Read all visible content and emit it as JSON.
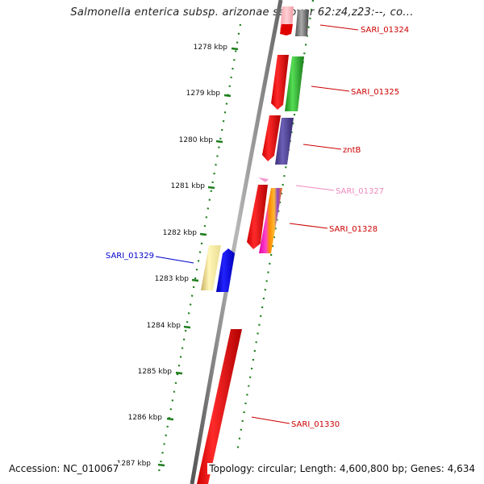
{
  "title": "Salmonella enterica subsp. arizonae serovar 62:z4,z23:--, co...",
  "footer": {
    "accession": "Accession: NC_010067",
    "topology": "Topology: circular; Length: 4,600,800 bp; Genes: 4,634"
  },
  "colors": {
    "backbone": "#888888",
    "tick": "#1e7e1e",
    "tick_label": "#111111"
  },
  "ticks": [
    "1278 kbp",
    "1279 kbp",
    "1280 kbp",
    "1281 kbp",
    "1282 kbp",
    "1283 kbp",
    "1284 kbp",
    "1285 kbp",
    "1286 kbp",
    "1287 kbp"
  ],
  "gene_labels": [
    {
      "name": "SARI_01324",
      "color": "#cc0000"
    },
    {
      "name": "SARI_01325",
      "color": "#cc0000"
    },
    {
      "name": "zntB",
      "color": "#cc0000"
    },
    {
      "name": "SARI_01327",
      "color": "#ee88bb"
    },
    {
      "name": "SARI_01328",
      "color": "#cc0000"
    },
    {
      "name": "SARI_01329",
      "color": "#0000cc"
    },
    {
      "name": "SARI_01330",
      "color": "#cc0000"
    }
  ]
}
